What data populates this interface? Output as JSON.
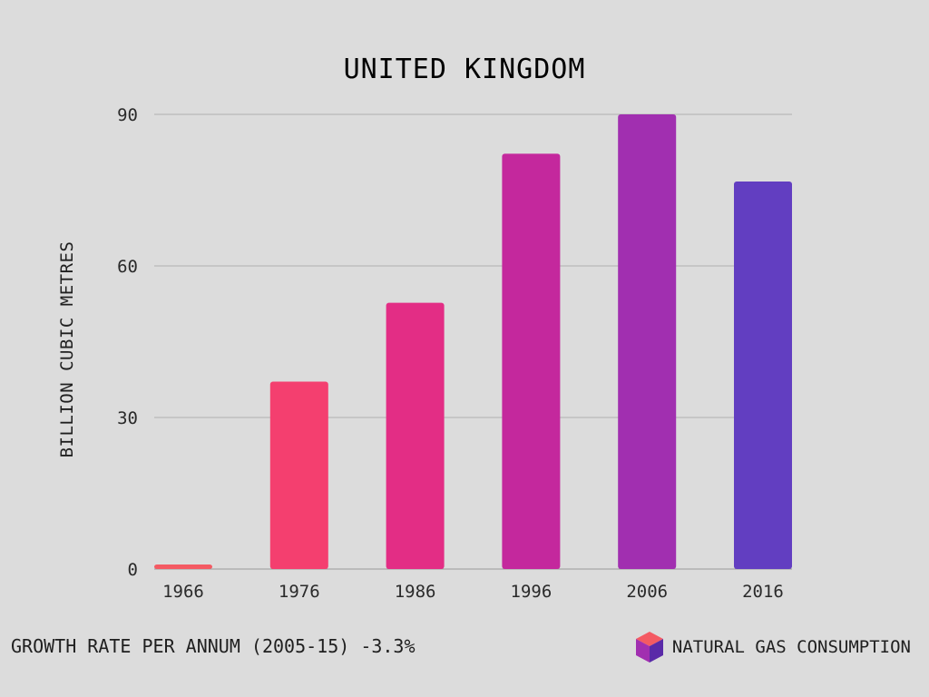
{
  "chart_data": {
    "type": "bar",
    "title": "UNITED KINGDOM",
    "ylabel": "BILLION CUBIC METRES",
    "xlabel": "",
    "categories": [
      "1966",
      "1976",
      "1986",
      "1996",
      "2006",
      "2016"
    ],
    "values": [
      0.9,
      37.1,
      52.7,
      82.2,
      90.0,
      76.7
    ],
    "colors": [
      "#f45a63",
      "#f43f6f",
      "#e32d85",
      "#c4289d",
      "#a12fb0",
      "#623ec1"
    ],
    "ylim": [
      0,
      90
    ],
    "yticks": [
      0,
      30,
      60,
      90
    ],
    "grid": true
  },
  "footer": {
    "growth_text": "GROWTH RATE PER ANNUM (2005-15) -3.3%",
    "legend_text": "NATURAL GAS CONSUMPTION",
    "legend_icon": "cube-icon"
  }
}
